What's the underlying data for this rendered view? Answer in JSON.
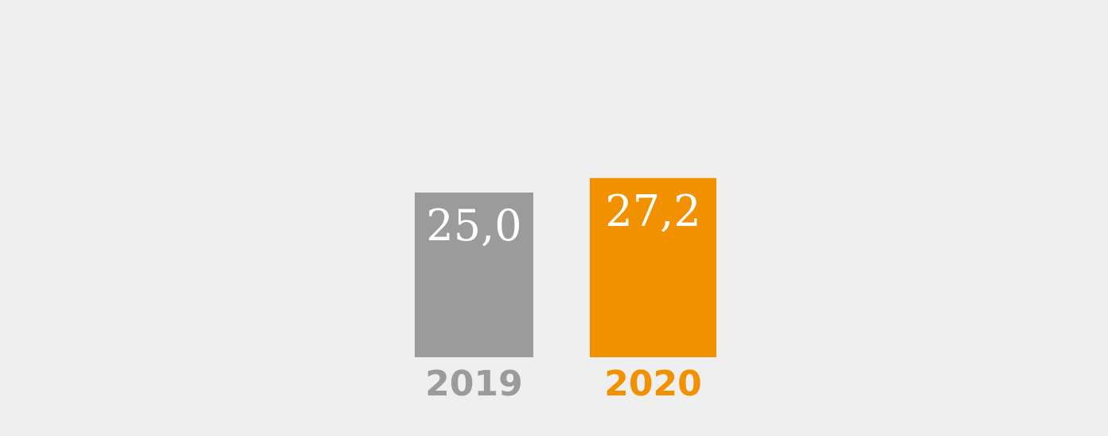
{
  "chart_data": {
    "type": "bar",
    "categories": [
      "2019",
      "2020"
    ],
    "values": [
      25.0,
      27.2
    ],
    "value_labels": [
      "25,0",
      "27,2"
    ],
    "colors": [
      "#9b9b9b",
      "#f29100"
    ],
    "background": "#efefef",
    "title": "",
    "xlabel": "",
    "ylabel": "",
    "grid": false,
    "legend": "none"
  }
}
